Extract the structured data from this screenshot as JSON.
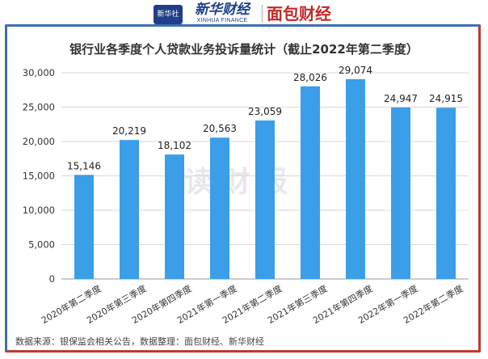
{
  "header": {
    "xinhua_box_text": "新华社",
    "xinhua_cn": "新华财经",
    "xinhua_en": "XINHUA FINANCE",
    "mianbao_logo": "面包财经"
  },
  "watermark": "读财报",
  "source_note": "数据来源：银保监会相关公告，数据整理：面包财经、新华财经",
  "colors": {
    "bar": "#3b9ee8",
    "frame_left": "#3e6fb0",
    "frame_right": "#c0392b",
    "grid": "#d9d9d9"
  },
  "chart_data": {
    "type": "bar",
    "title": "银行业各季度个人贷款业务投诉量统计（截止2022年第二季度）",
    "categories": [
      "2020年第二季度",
      "2020年第三季度",
      "2020年第四季度",
      "2021年第一季度",
      "2021年第二季度",
      "2021年第三季度",
      "2021年第四季度",
      "2022年第一季度",
      "2022年第二季度"
    ],
    "values": [
      15146,
      20219,
      18102,
      20563,
      23059,
      28026,
      29074,
      24947,
      24915
    ],
    "value_labels": [
      "15,146",
      "20,219",
      "18,102",
      "20,563",
      "23,059",
      "28,026",
      "29,074",
      "24,947",
      "24,915"
    ],
    "ylim": [
      0,
      30000
    ],
    "yticks": [
      0,
      5000,
      10000,
      15000,
      20000,
      25000,
      30000
    ],
    "ytick_labels": [
      "0",
      "5,000",
      "10,000",
      "15,000",
      "20,000",
      "25,000",
      "30,000"
    ],
    "grid": true
  }
}
